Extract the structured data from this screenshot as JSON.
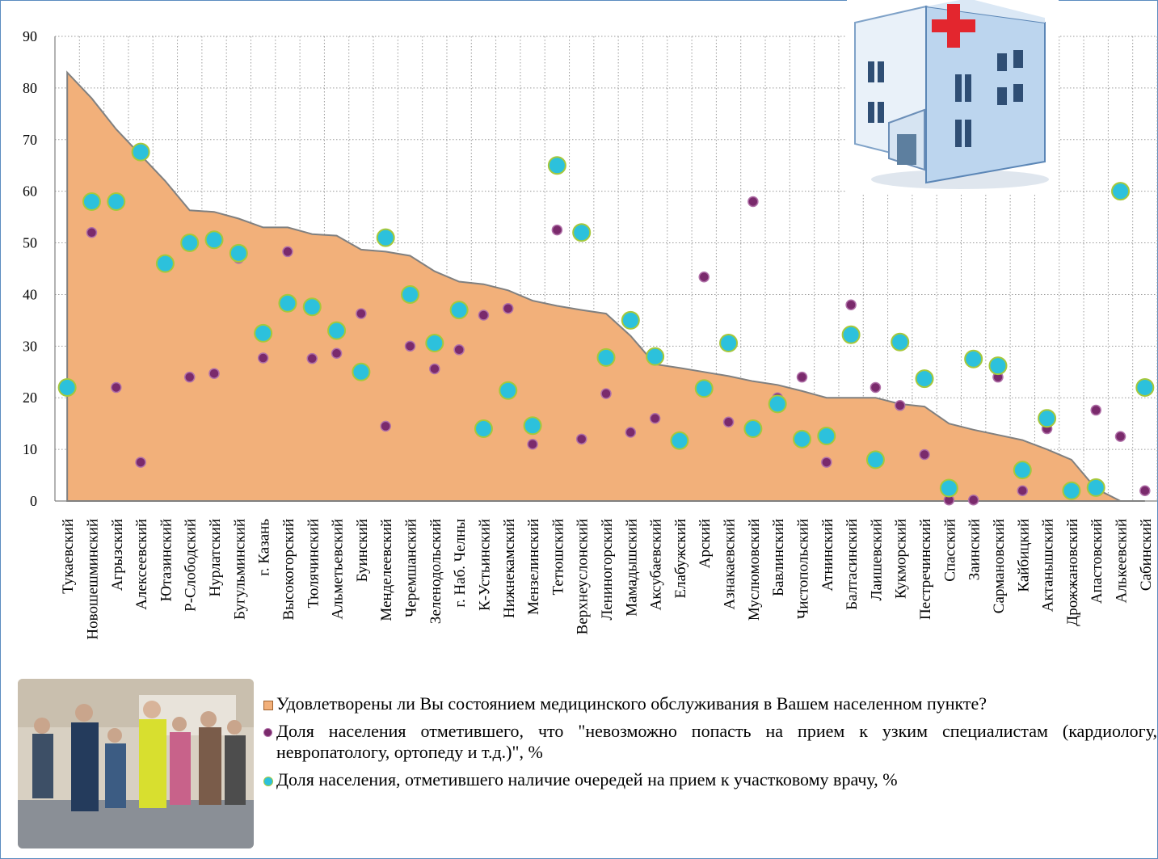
{
  "chart_data": {
    "type": "area",
    "ylim": [
      0,
      90
    ],
    "yticks": [
      0,
      10,
      20,
      30,
      40,
      50,
      60,
      70,
      80,
      90
    ],
    "grid": true,
    "categories": [
      "Тукаевский",
      "Новошешминский",
      "Агрызский",
      "Алексеевский",
      "Ютазинский",
      "Р-Слободский",
      "Нурлатский",
      "Бугульминский",
      "г. Казань",
      "Высокогорский",
      "Тюлячинский",
      "Альметьевский",
      "Буинский",
      "Менделеевский",
      "Черемшанский",
      "Зеленодольский",
      "г. Наб. Челны",
      "К-Устьинский",
      "Нижнекамский",
      "Мензелинский",
      "Тетюшский",
      "Верхнеуслонский",
      "Лениногорский",
      "Мамадышский",
      "Аксубаевский",
      "Елабужский",
      "Арский",
      "Азнакаевский",
      "Муслюмовский",
      "Бавлинский",
      "Чистопольский",
      "Атнинский",
      "Балтасинский",
      "Лаишевский",
      "Кукморский",
      "Пестречинский",
      "Спасский",
      "Заинский",
      "Сармановский",
      "Кайбицкий",
      "Актанышский",
      "Дрожжановский",
      "Апастовский",
      "Алькеевский",
      "Сабинский"
    ],
    "series": [
      {
        "name": "Удовлетворены ли Вы состоянием медицинского обслуживания в Вашем населенном пункте?",
        "kind": "area",
        "color": "#f2b07a",
        "values": [
          83,
          78,
          72,
          67,
          62,
          56.3,
          56,
          54.7,
          53,
          53,
          51.7,
          51.4,
          48.7,
          48.3,
          47.5,
          44.5,
          42.5,
          42,
          40.8,
          38.8,
          37.8,
          37,
          36.3,
          32,
          26.5,
          25.8,
          25,
          24.2,
          23.2,
          22.5,
          21.3,
          20,
          20,
          20,
          18.8,
          18.3,
          15,
          13.8,
          12.8,
          11.8,
          10,
          8,
          2.4,
          0,
          0
        ]
      },
      {
        "name": "Доля населения отметившего, что \"невозможно попасть на прием к узким специалистам (кардиологу, невропатологу, ортопеду и т.д.)\", %",
        "kind": "scatter",
        "color": "#7a2a6c",
        "values": [
          null,
          52,
          22,
          7.5,
          null,
          24,
          24.7,
          47,
          27.7,
          48.3,
          27.6,
          28.6,
          36.3,
          14.5,
          30,
          25.6,
          29.3,
          36,
          37.3,
          11,
          52.5,
          12,
          20.8,
          13.3,
          16,
          null,
          43.4,
          15.3,
          58,
          20,
          24,
          7.5,
          38,
          22,
          18.5,
          9,
          0.2,
          0.2,
          24,
          2,
          14,
          null,
          17.6,
          12.5,
          2
        ]
      },
      {
        "name": "Доля населения, отметившего наличие очередей на прием к участковому врачу, %",
        "kind": "scatter",
        "color": "#2cc1dc",
        "values": [
          22,
          58,
          58,
          67.6,
          46,
          50,
          50.6,
          48,
          32.5,
          38.3,
          37.6,
          33,
          25,
          51,
          40,
          30.6,
          37,
          14,
          21.4,
          14.6,
          65,
          52,
          27.8,
          35,
          28,
          11.7,
          21.8,
          30.6,
          14,
          18.8,
          12,
          12.6,
          32.2,
          8,
          30.8,
          23.7,
          2.5,
          27.5,
          26.2,
          6,
          16,
          2,
          2.6,
          60,
          22
        ]
      }
    ]
  }
}
